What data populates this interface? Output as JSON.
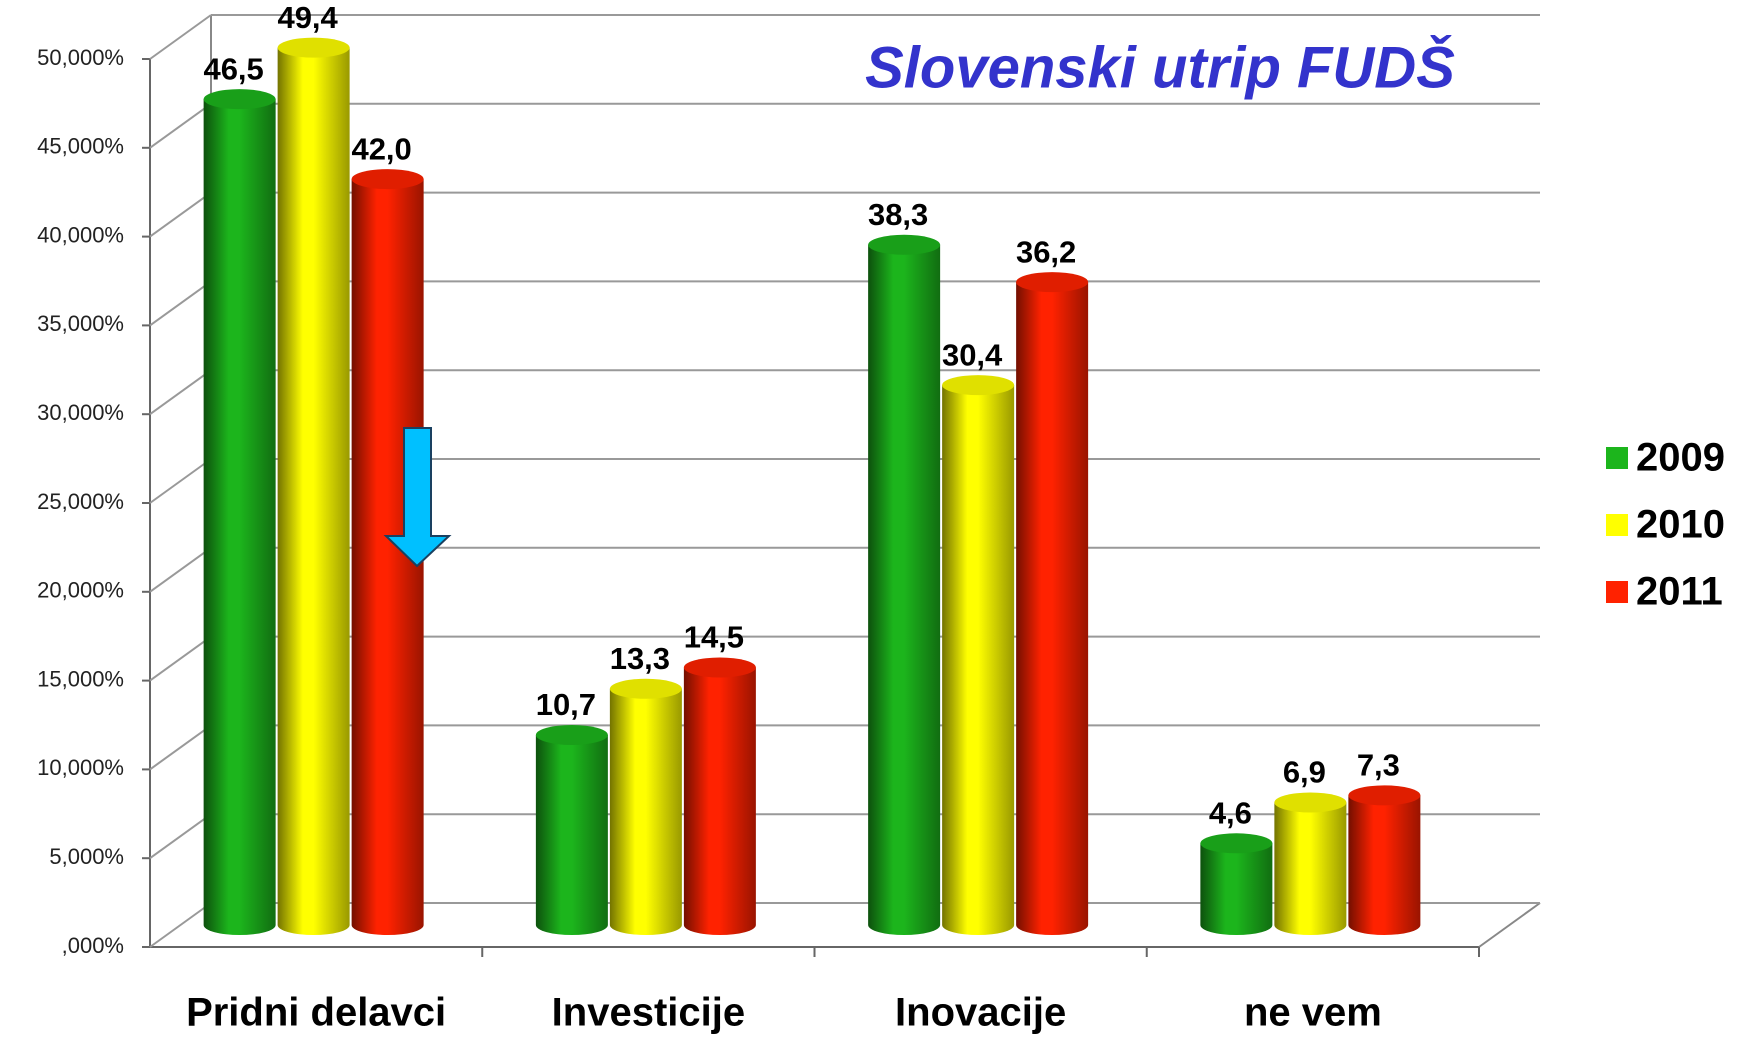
{
  "chart_data": {
    "type": "bar",
    "title": "Slovenski utrip FUDŠ",
    "categories": [
      "Pridni delavci",
      "Investicije",
      "Inovacije",
      "ne vem"
    ],
    "series": [
      {
        "name": "2009",
        "color": "#1cb51c",
        "values": [
          46.5,
          10.7,
          38.3,
          4.6
        ],
        "value_labels": [
          "46,5",
          "10,7",
          "38,3",
          "4,6"
        ]
      },
      {
        "name": "2010",
        "color": "#ffff00",
        "values": [
          49.4,
          13.3,
          30.4,
          6.9
        ],
        "value_labels": [
          "49,4",
          "13,3",
          "30,4",
          "6,9"
        ]
      },
      {
        "name": "2011",
        "color": "#ff2200",
        "values": [
          42.0,
          14.5,
          36.2,
          7.3
        ],
        "value_labels": [
          "42,0",
          "14,5",
          "36,2",
          "7,3"
        ]
      }
    ],
    "ylim": [
      0,
      50
    ],
    "yticks": [
      {
        "value": 0,
        "label": ",000%"
      },
      {
        "value": 5,
        "label": "5,000%"
      },
      {
        "value": 10,
        "label": "10,000%"
      },
      {
        "value": 15,
        "label": "15,000%"
      },
      {
        "value": 20,
        "label": "20,000%"
      },
      {
        "value": 25,
        "label": "25,000%"
      },
      {
        "value": 30,
        "label": "30,000%"
      },
      {
        "value": 35,
        "label": "35,000%"
      },
      {
        "value": 40,
        "label": "40,000%"
      },
      {
        "value": 45,
        "label": "45,000%"
      },
      {
        "value": 50,
        "label": "50,000%"
      }
    ],
    "grid": true,
    "legend": "right"
  }
}
